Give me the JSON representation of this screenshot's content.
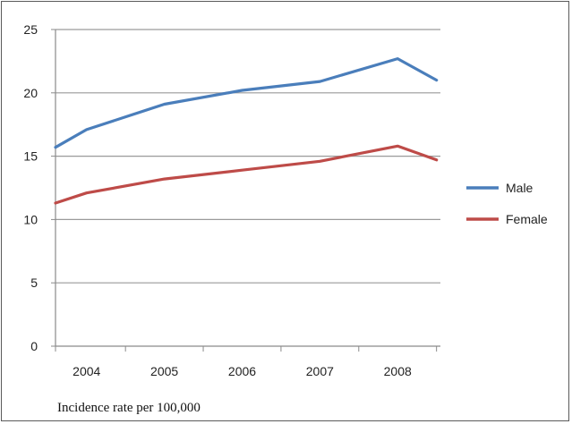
{
  "chart_data": {
    "type": "line",
    "title": "",
    "xlabel": "",
    "ylabel": "",
    "caption": "Incidence rate per 100,000",
    "categories": [
      "2004",
      "2005",
      "2006",
      "2007",
      "2008"
    ],
    "x": [
      2003.6,
      2004,
      2005,
      2006,
      2007,
      2008,
      2008.5
    ],
    "ylim": [
      0,
      25
    ],
    "yticks": [
      0,
      5,
      10,
      15,
      20,
      25
    ],
    "grid": true,
    "legend_position": "right",
    "series": [
      {
        "name": "Male",
        "color": "#4a7ebb",
        "values": [
          15.7,
          17.1,
          19.1,
          20.2,
          20.9,
          22.7,
          21.0
        ]
      },
      {
        "name": "Female",
        "color": "#be4b48",
        "values": [
          11.3,
          12.1,
          13.2,
          13.9,
          14.6,
          15.8,
          14.7
        ]
      }
    ]
  }
}
